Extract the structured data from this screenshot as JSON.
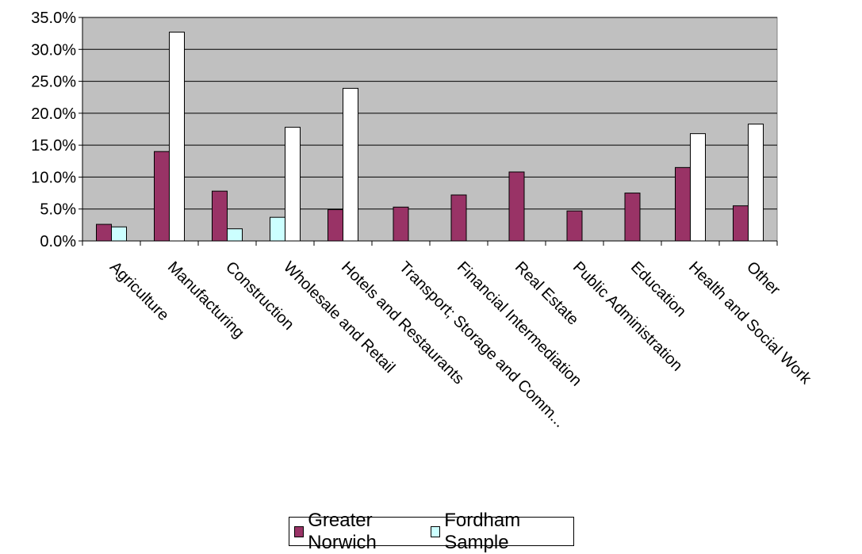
{
  "chart_data": {
    "type": "bar",
    "categories": [
      "Agriculture",
      "Manufacturing",
      "Construction",
      "Wholesale and Retail",
      "Hotels and Restaurants",
      "Transport; Storage and Comm...",
      "Financial Intermediation",
      "Real Estate",
      "Public Administration",
      "Education",
      "Health and Social Work",
      "Other"
    ],
    "series": [
      {
        "name": "Greater Norwich",
        "color": "#993366",
        "values": [
          2.6,
          14.0,
          7.8,
          null,
          4.9,
          5.3,
          7.2,
          10.8,
          4.7,
          7.5,
          11.5,
          5.5
        ]
      },
      {
        "name": "Fordham Sample",
        "color": "#ccffff",
        "values": [
          2.2,
          null,
          1.9,
          3.7,
          null,
          null,
          null,
          null,
          null,
          null,
          null,
          null
        ]
      },
      {
        "name": "",
        "color": "#ffffff",
        "values": [
          null,
          32.7,
          null,
          17.8,
          23.9,
          null,
          null,
          null,
          null,
          null,
          16.8,
          18.3
        ]
      }
    ],
    "y_ticks": [
      "0.0%",
      "5.0%",
      "10.0%",
      "15.0%",
      "20.0%",
      "25.0%",
      "30.0%",
      "35.0%"
    ],
    "ylim": [
      0,
      35
    ],
    "y_unit": "%",
    "grid": true,
    "plot_background": "#c0c0c0",
    "legend_position": "bottom"
  }
}
